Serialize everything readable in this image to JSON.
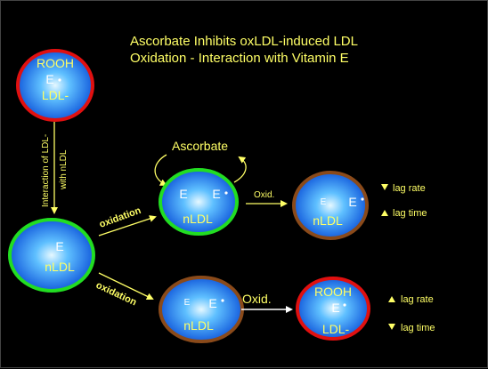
{
  "title_line1": "Ascorbate  Inhibits  oxLDL-induced  LDL",
  "title_line2": "Oxidation - Interaction with Vitamin E",
  "colors": {
    "background": "#000000",
    "text_yellow": "#ffff66",
    "ring_red": "#e01010",
    "ring_green": "#22dd22",
    "ring_brown": "#8a4a1a",
    "fill_center": "#d8f4ff",
    "fill_edge": "#1060e0"
  },
  "particles": {
    "oxldl": {
      "line1": "ROOH",
      "line2": "E",
      "line3": "LDL-"
    },
    "nldl_main": {
      "line1": "E",
      "line2": "nLDL"
    },
    "nldl_asc": {
      "e_left": "E",
      "e_right": "E",
      "label": "nLDL"
    },
    "nldl_result": {
      "e_small": "E",
      "e_big": "E",
      "label": "nLDL"
    },
    "nldl_lower": {
      "e_small": "E",
      "e_big": "E",
      "label": "nLDL"
    },
    "oxldl_result": {
      "line1": "ROOH",
      "line2": "E",
      "line3": "LDL-"
    }
  },
  "arrows": {
    "interaction_line1": "Interaction of LDL-",
    "interaction_line2": "with nLDL",
    "oxidation_upper": "oxidation",
    "oxidation_lower": "oxidation",
    "oxid_upper": "Oxid.",
    "oxid_lower": "Oxid."
  },
  "ascorbate": "Ascorbate",
  "outcomes": {
    "upper": {
      "rate": "lag rate",
      "time": "lag time"
    },
    "lower": {
      "rate": "lag rate",
      "time": "lag time"
    }
  }
}
